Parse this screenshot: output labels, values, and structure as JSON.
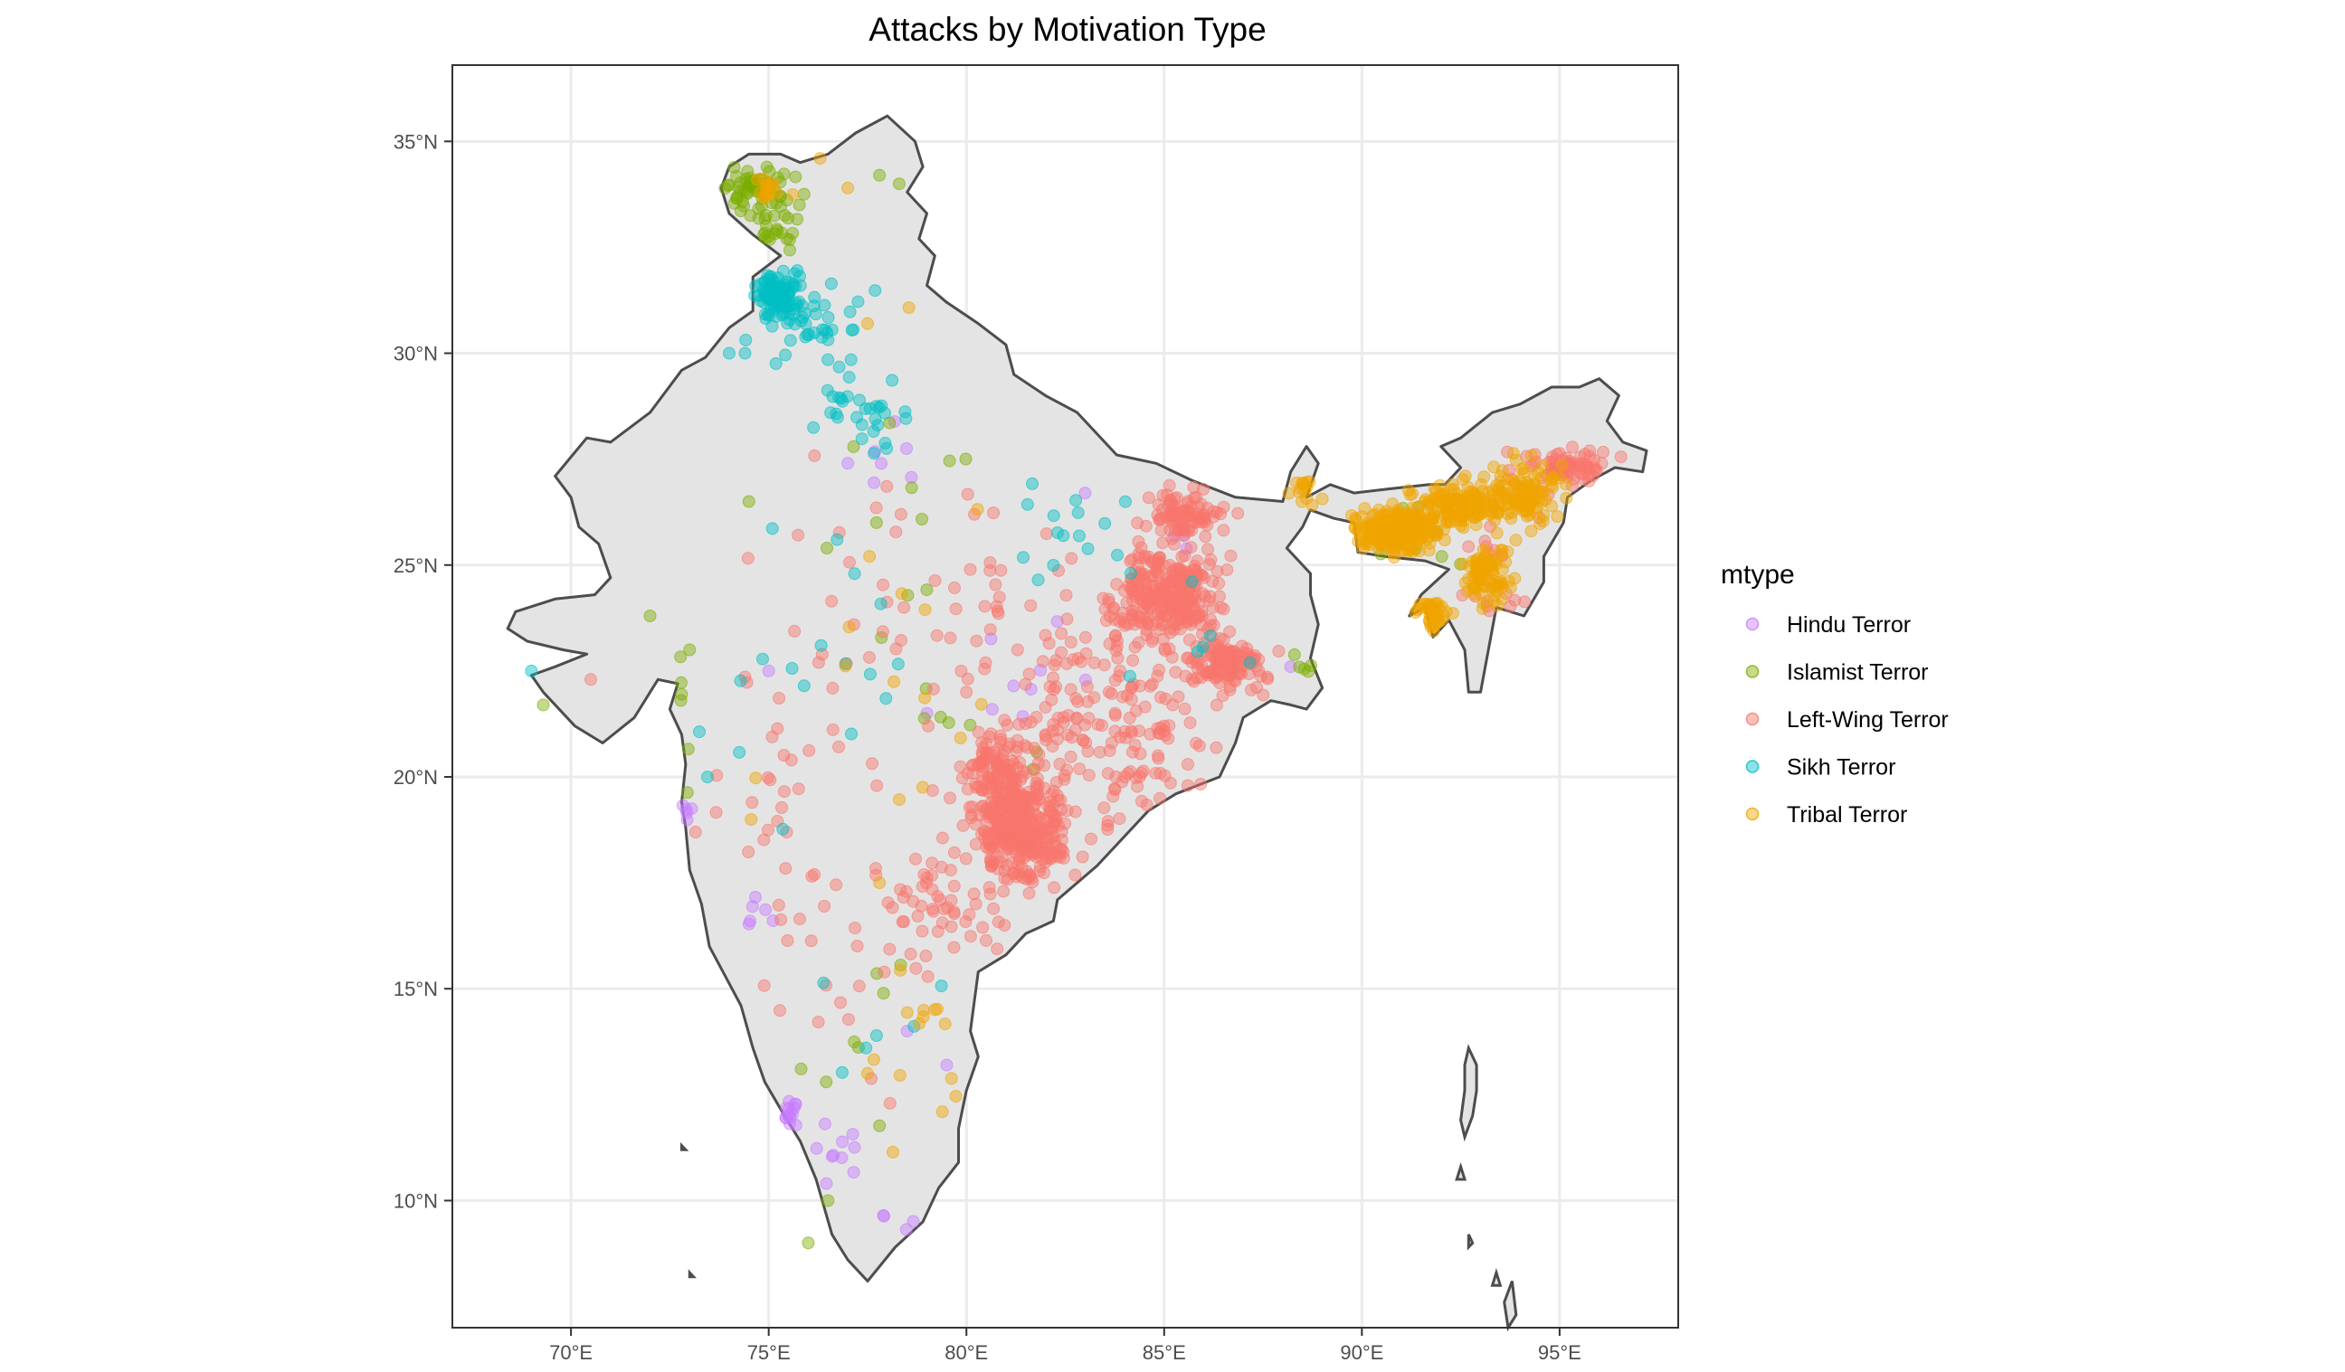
{
  "chart_data": {
    "type": "scatter",
    "title": "Attacks by Motivation Type",
    "xlabel": "",
    "ylabel": "",
    "xlim": [
      67,
      98
    ],
    "ylim": [
      7,
      36.8
    ],
    "x_ticks": [
      70,
      75,
      80,
      85,
      90,
      95
    ],
    "x_tick_labels": [
      "70°E",
      "75°E",
      "80°E",
      "85°E",
      "90°E",
      "95°E"
    ],
    "y_ticks": [
      10,
      15,
      20,
      25,
      30,
      35
    ],
    "y_tick_labels": [
      "10°N",
      "15°N",
      "20°N",
      "25°N",
      "30°N",
      "35°N"
    ],
    "grid": true,
    "legend": {
      "title": "mtype",
      "position": "right",
      "entries": [
        "Hindu Terror",
        "Islamist Terror",
        "Left-Wing Terror",
        "Sikh Terror",
        "Tribal Terror"
      ]
    },
    "basemap": "India outline (grey fill, dark grey border)",
    "series": [
      {
        "name": "Hindu Terror",
        "color": "#C77CFF",
        "clusters": [
          {
            "center": [
              75.4,
              12.0
            ],
            "spread": [
              0.4,
              0.4
            ],
            "count": 14
          },
          {
            "center": [
              76.5,
              10.8
            ],
            "spread": [
              1.0,
              1.0
            ],
            "count": 10
          },
          {
            "center": [
              74.5,
              16.8
            ],
            "spread": [
              0.5,
              0.5
            ],
            "count": 6
          },
          {
            "center": [
              78.0,
              27.5
            ],
            "spread": [
              0.5,
              0.6
            ],
            "count": 6
          },
          {
            "center": [
              85.5,
              25.5
            ],
            "spread": [
              0.5,
              0.5
            ],
            "count": 5
          },
          {
            "center": [
              81.0,
              22.0
            ],
            "spread": [
              2.5,
              2.0
            ],
            "count": 8
          },
          {
            "center": [
              72.9,
              19.1
            ],
            "spread": [
              0.2,
              0.3
            ],
            "count": 5
          },
          {
            "center": [
              78.0,
              9.5
            ],
            "spread": [
              0.5,
              0.5
            ],
            "count": 4
          }
        ],
        "points": [
          [
            75.0,
            22.5
          ],
          [
            78.5,
            14.0
          ],
          [
            79.5,
            13.2
          ],
          [
            77.0,
            27.4
          ],
          [
            79.0,
            21.5
          ],
          [
            83.0,
            26.7
          ],
          [
            88.2,
            22.6
          ]
        ]
      },
      {
        "name": "Islamist Terror",
        "color": "#7CAE00",
        "clusters": [
          {
            "center": [
              74.8,
              33.8
            ],
            "spread": [
              0.7,
              0.5
            ],
            "count": 65
          },
          {
            "center": [
              75.2,
              32.9
            ],
            "spread": [
              0.5,
              0.4
            ],
            "count": 20
          },
          {
            "center": [
              72.8,
              20.5
            ],
            "spread": [
              0.3,
              1.8
            ],
            "count": 6
          },
          {
            "center": [
              78.5,
              26.5
            ],
            "spread": [
              2.0,
              2.0
            ],
            "count": 10
          },
          {
            "center": [
              80.5,
              21.0
            ],
            "spread": [
              1.5,
              2.0
            ],
            "count": 8
          },
          {
            "center": [
              77.0,
              14.0
            ],
            "spread": [
              1.5,
              2.0
            ],
            "count": 8
          },
          {
            "center": [
              88.4,
              22.6
            ],
            "spread": [
              0.3,
              0.3
            ],
            "count": 5
          },
          {
            "center": [
              91.5,
              25.5
            ],
            "spread": [
              1.0,
              1.0
            ],
            "count": 8
          }
        ],
        "points": [
          [
            77.8,
            34.2
          ],
          [
            78.3,
            34.0
          ],
          [
            74.5,
            26.5
          ],
          [
            73.0,
            23.0
          ],
          [
            69.3,
            21.7
          ],
          [
            72.0,
            23.8
          ],
          [
            76.0,
            9.0
          ],
          [
            76.5,
            10.0
          ]
        ]
      },
      {
        "name": "Left-Wing Terror",
        "color": "#F8766D",
        "clusters": [
          {
            "center": [
              81.3,
              18.8
            ],
            "spread": [
              0.9,
              1.0
            ],
            "count": 380
          },
          {
            "center": [
              80.7,
              20.2
            ],
            "spread": [
              0.6,
              0.6
            ],
            "count": 100
          },
          {
            "center": [
              85.2,
              24.3
            ],
            "spread": [
              1.0,
              0.9
            ],
            "count": 290
          },
          {
            "center": [
              86.6,
              22.7
            ],
            "spread": [
              0.7,
              0.5
            ],
            "count": 120
          },
          {
            "center": [
              85.5,
              26.2
            ],
            "spread": [
              0.8,
              0.5
            ],
            "count": 90
          },
          {
            "center": [
              83.6,
              21.5
            ],
            "spread": [
              2.2,
              2.6
            ],
            "count": 200
          },
          {
            "center": [
              79.2,
              16.8
            ],
            "spread": [
              1.6,
              1.4
            ],
            "count": 60
          },
          {
            "center": [
              95.2,
              27.3
            ],
            "spread": [
              0.8,
              0.4
            ],
            "count": 80
          },
          {
            "center": [
              93.3,
              25.0
            ],
            "spread": [
              1.0,
              1.5
            ],
            "count": 25
          },
          {
            "center": [
              78.5,
              24.0
            ],
            "spread": [
              3.5,
              3.5
            ],
            "count": 60
          },
          {
            "center": [
              76.0,
              16.0
            ],
            "spread": [
              2.5,
              4.0
            ],
            "count": 30
          },
          {
            "center": [
              75.5,
              20.5
            ],
            "spread": [
              1.5,
              1.5
            ],
            "count": 10
          }
        ],
        "points": [
          [
            70.5,
            22.3
          ],
          [
            80.0,
            22.0
          ],
          [
            82.0,
            21.0
          ],
          [
            84.0,
            20.0
          ]
        ]
      },
      {
        "name": "Sikh Terror",
        "color": "#00BFC4",
        "clusters": [
          {
            "center": [
              75.3,
              31.4
            ],
            "spread": [
              0.45,
              0.45
            ],
            "count": 110
          },
          {
            "center": [
              76.2,
              30.6
            ],
            "spread": [
              1.0,
              0.8
            ],
            "count": 35
          },
          {
            "center": [
              77.2,
              28.7
            ],
            "spread": [
              1.0,
              0.7
            ],
            "count": 30
          },
          {
            "center": [
              82.0,
              25.8
            ],
            "spread": [
              1.5,
              1.0
            ],
            "count": 16
          },
          {
            "center": [
              77.0,
              23.5
            ],
            "spread": [
              2.5,
              2.0
            ],
            "count": 12
          },
          {
            "center": [
              73.5,
              21.5
            ],
            "spread": [
              2.0,
              2.5
            ],
            "count": 6
          },
          {
            "center": [
              77.5,
              14.0
            ],
            "spread": [
              1.5,
              1.5
            ],
            "count": 6
          },
          {
            "center": [
              86.0,
              23.0
            ],
            "spread": [
              1.5,
              1.5
            ],
            "count": 6
          }
        ],
        "points": [
          [
            69.0,
            22.5
          ],
          [
            74.4,
            30.0
          ],
          [
            74.0,
            30.0
          ]
        ]
      },
      {
        "name": "Tribal Terror",
        "color": "#F0A500",
        "clusters": [
          {
            "center": [
              90.9,
              25.8
            ],
            "spread": [
              0.8,
              0.4
            ],
            "count": 260
          },
          {
            "center": [
              92.6,
              26.4
            ],
            "spread": [
              1.2,
              0.4
            ],
            "count": 160
          },
          {
            "center": [
              94.2,
              26.7
            ],
            "spread": [
              0.8,
              0.6
            ],
            "count": 90
          },
          {
            "center": [
              93.2,
              24.8
            ],
            "spread": [
              0.5,
              0.6
            ],
            "count": 80
          },
          {
            "center": [
              91.6,
              23.8
            ],
            "spread": [
              0.4,
              0.3
            ],
            "count": 40
          },
          {
            "center": [
              88.5,
              26.8
            ],
            "spread": [
              0.3,
              0.3
            ],
            "count": 15
          },
          {
            "center": [
              75.0,
              33.8
            ],
            "spread": [
              0.4,
              0.3
            ],
            "count": 15
          },
          {
            "center": [
              78.5,
              13.0
            ],
            "spread": [
              1.5,
              1.5
            ],
            "count": 14
          },
          {
            "center": [
              78.0,
              22.0
            ],
            "spread": [
              3.0,
              4.0
            ],
            "count": 15
          }
        ],
        "points": [
          [
            76.3,
            34.6
          ],
          [
            77.0,
            33.9
          ],
          [
            77.5,
            30.7
          ],
          [
            77.5,
            13.0
          ],
          [
            77.8,
            17.5
          ]
        ]
      }
    ]
  }
}
